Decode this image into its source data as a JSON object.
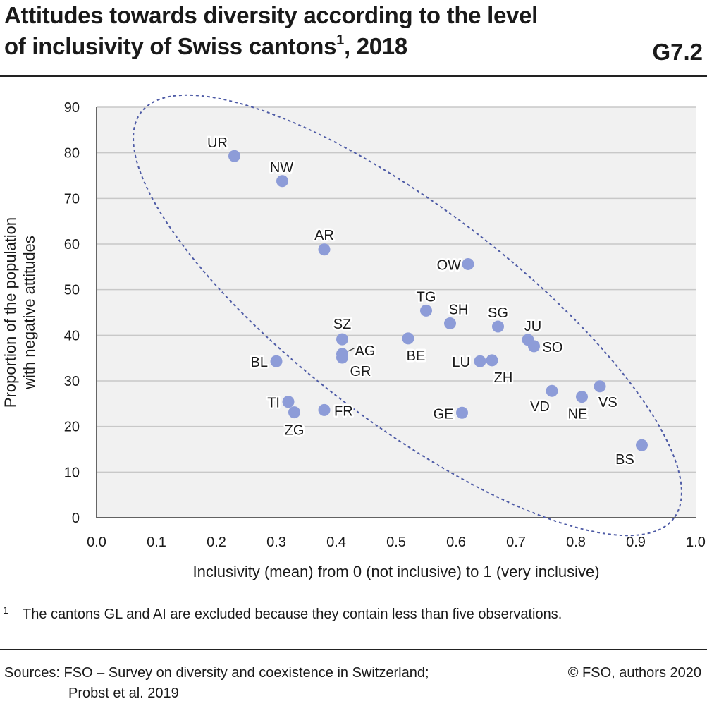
{
  "header": {
    "title_line1": "Attitudes towards diversity according to the level",
    "title_line2_main": "of inclusivity of Swiss cantons",
    "title_sup": "1",
    "title_line2_tail": ", 2018",
    "graphic_code": "G7.2"
  },
  "footnote": {
    "marker": "1",
    "text": "The cantons GL and AI are excluded because they contain less than five observations."
  },
  "footer": {
    "sources_line1": "Sources: FSO – Survey on diversity and coexistence in Switzerland;",
    "sources_line2": "Probst et al. 2019",
    "copyright": "© FSO, authors 2020"
  },
  "colors": {
    "point": "#8d9cd8",
    "plot_background": "#f1f1f1",
    "ellipse": "#4e5ba6",
    "gridline": "#c8c8c8",
    "text": "#1a1a1a"
  },
  "chart_data": {
    "type": "scatter",
    "xlabel": "Inclusivity (mean) from 0 (not inclusive) to 1 (very inclusive)",
    "ylabel_line1": "Proportion of the population",
    "ylabel_line2": "with negative attitudes",
    "xlim": [
      0,
      1
    ],
    "ylim": [
      0,
      90
    ],
    "x_ticks": [
      "0.0",
      "0.1",
      "0.2",
      "0.3",
      "0.4",
      "0.5",
      "0.6",
      "0.7",
      "0.8",
      "0.9",
      "1.0"
    ],
    "y_ticks": [
      "0",
      "10",
      "20",
      "30",
      "40",
      "50",
      "60",
      "70",
      "80",
      "90"
    ],
    "grid": "horizontal",
    "annotation": "dashed ellipse enclosing all cantons",
    "points": [
      {
        "label": "UR",
        "x": 0.23,
        "y": 79.3
      },
      {
        "label": "NW",
        "x": 0.31,
        "y": 73.8
      },
      {
        "label": "AR",
        "x": 0.38,
        "y": 58.8
      },
      {
        "label": "OW",
        "x": 0.62,
        "y": 55.6
      },
      {
        "label": "TG",
        "x": 0.55,
        "y": 45.4
      },
      {
        "label": "SH",
        "x": 0.59,
        "y": 42.6
      },
      {
        "label": "SG",
        "x": 0.67,
        "y": 41.9
      },
      {
        "label": "JU",
        "x": 0.72,
        "y": 39.0
      },
      {
        "label": "SO",
        "x": 0.73,
        "y": 37.6
      },
      {
        "label": "SZ",
        "x": 0.41,
        "y": 39.1
      },
      {
        "label": "BE",
        "x": 0.52,
        "y": 39.3
      },
      {
        "label": "AG",
        "x": 0.41,
        "y": 35.9
      },
      {
        "label": "GR",
        "x": 0.41,
        "y": 35.1
      },
      {
        "label": "BL",
        "x": 0.3,
        "y": 34.3
      },
      {
        "label": "LU",
        "x": 0.64,
        "y": 34.3
      },
      {
        "label": "ZH",
        "x": 0.66,
        "y": 34.5
      },
      {
        "label": "VS",
        "x": 0.84,
        "y": 28.8
      },
      {
        "label": "VD",
        "x": 0.76,
        "y": 27.8
      },
      {
        "label": "NE",
        "x": 0.81,
        "y": 26.5
      },
      {
        "label": "TI",
        "x": 0.32,
        "y": 25.4
      },
      {
        "label": "ZG",
        "x": 0.33,
        "y": 23.1
      },
      {
        "label": "FR",
        "x": 0.38,
        "y": 23.6
      },
      {
        "label": "GE",
        "x": 0.61,
        "y": 23.0
      },
      {
        "label": "BS",
        "x": 0.91,
        "y": 15.9
      }
    ]
  }
}
